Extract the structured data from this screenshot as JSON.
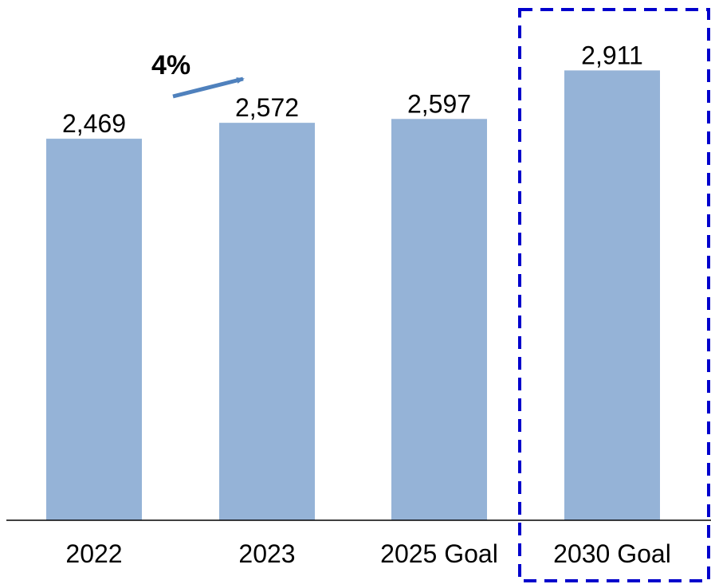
{
  "chart_data": {
    "type": "bar",
    "categories": [
      "2022",
      "2023",
      "2025 Goal",
      "2030 Goal"
    ],
    "values": [
      2469,
      2572,
      2597,
      2911
    ],
    "value_labels": [
      "2,469",
      "2,572",
      "2,597",
      "2,911"
    ],
    "ylim": [
      0,
      2980
    ],
    "grid": false,
    "bar_color": "#95B3D7",
    "annotation": {
      "text": "4%",
      "from_category": "2022",
      "to_category": "2023",
      "arrow_color": "#4F81BD"
    },
    "highlight": {
      "category": "2030 Goal",
      "style": "dashed box",
      "color": "#0000CC"
    }
  }
}
